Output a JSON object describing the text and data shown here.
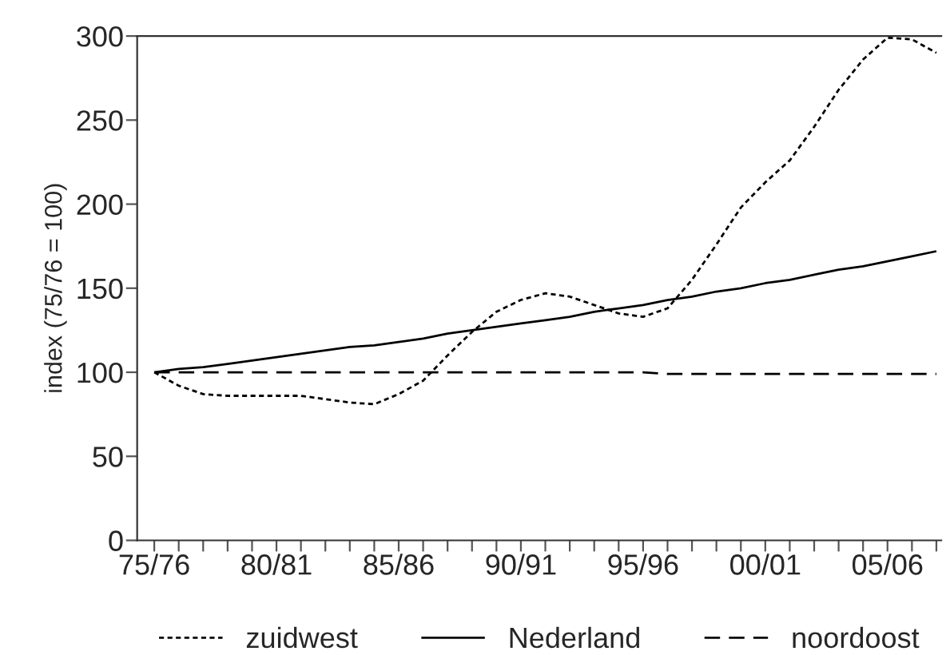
{
  "chart_data": {
    "type": "line",
    "ylabel": "index (75/76 = 100)",
    "ylim": [
      0,
      300
    ],
    "yticks": [
      0,
      50,
      100,
      150,
      200,
      250,
      300
    ],
    "categories": [
      "75/76",
      null,
      null,
      null,
      null,
      "80/81",
      null,
      null,
      null,
      null,
      "85/86",
      null,
      null,
      null,
      null,
      "90/91",
      null,
      null,
      null,
      null,
      "95/96",
      null,
      null,
      null,
      null,
      "00/01",
      null,
      null,
      null,
      null,
      "05/06",
      null,
      null
    ],
    "grid": false,
    "legend": "bottom",
    "marker": "none",
    "series": [
      {
        "name": "zuidwest",
        "color": "#000000",
        "line_style": "dotted",
        "values": [
          100,
          92,
          87,
          86,
          86,
          86,
          86,
          84,
          82,
          81,
          87,
          95,
          110,
          124,
          136,
          143,
          147,
          145,
          140,
          135,
          133,
          138,
          155,
          176,
          198,
          213,
          226,
          246,
          268,
          286,
          299,
          298,
          290
        ]
      },
      {
        "name": "Nederland",
        "color": "#000000",
        "line_style": "solid",
        "values": [
          100,
          102,
          103,
          105,
          107,
          109,
          111,
          113,
          115,
          116,
          118,
          120,
          123,
          125,
          127,
          129,
          131,
          133,
          136,
          138,
          140,
          143,
          145,
          148,
          150,
          153,
          155,
          158,
          161,
          163,
          166,
          169,
          172
        ]
      },
      {
        "name": "noordoost",
        "color": "#000000",
        "line_style": "dashed",
        "values": [
          100,
          100,
          100,
          100,
          100,
          100,
          100,
          100,
          100,
          100,
          100,
          100,
          100,
          100,
          100,
          100,
          100,
          100,
          100,
          100,
          100,
          99,
          99,
          99,
          99,
          99,
          99,
          99,
          99,
          99,
          99,
          99,
          99
        ]
      }
    ]
  }
}
